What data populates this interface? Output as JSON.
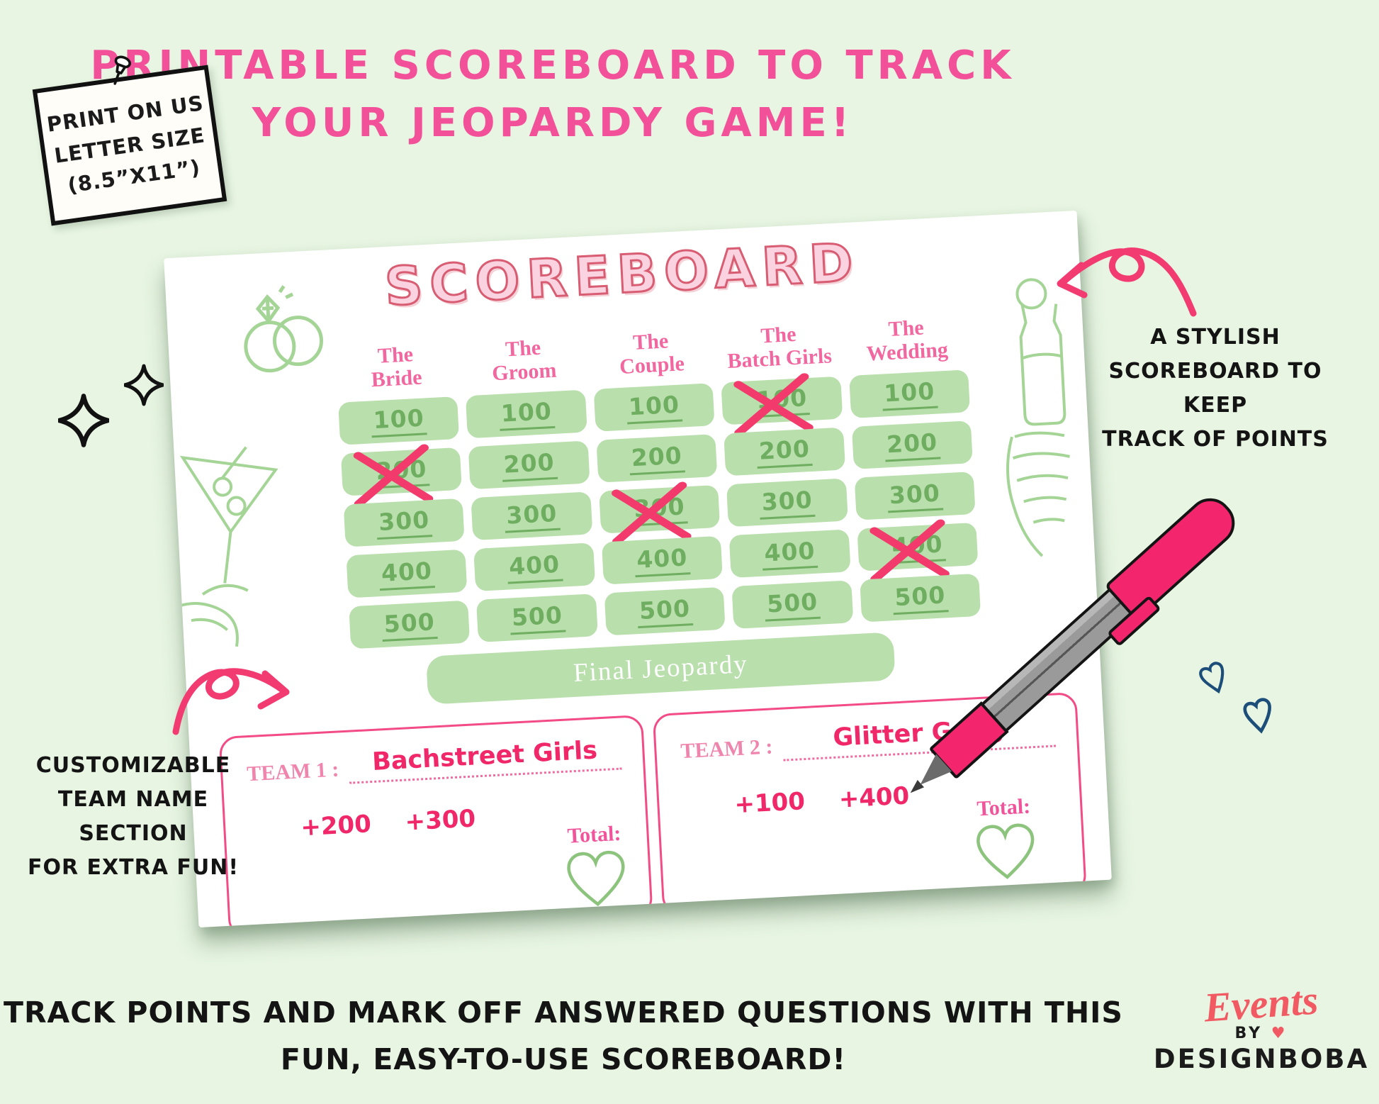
{
  "header": {
    "line1": "PRINTABLE SCOREBOARD TO TRACK",
    "line2": "YOUR JEOPARDY GAME!"
  },
  "note": {
    "lines": [
      "PRINT ON US",
      "LETTER SIZE",
      "(8.5”X11”)"
    ]
  },
  "annotations": {
    "right": {
      "lines": [
        "A STYLISH",
        "SCOREBOARD TO KEEP",
        "TRACK OF POINTS"
      ]
    },
    "left": {
      "lines": [
        "CUSTOMIZABLE",
        "TEAM NAME SECTION",
        "FOR EXTRA FUN!"
      ]
    }
  },
  "scoreboard": {
    "title": "SCOREBOARD",
    "columns": [
      {
        "label_top": "The",
        "label_bottom": "Bride",
        "cells": [
          {
            "value": "100",
            "crossed": false
          },
          {
            "value": "200",
            "crossed": true
          },
          {
            "value": "300",
            "crossed": false
          },
          {
            "value": "400",
            "crossed": false
          },
          {
            "value": "500",
            "crossed": false
          }
        ]
      },
      {
        "label_top": "The",
        "label_bottom": "Groom",
        "cells": [
          {
            "value": "100",
            "crossed": false
          },
          {
            "value": "200",
            "crossed": false
          },
          {
            "value": "300",
            "crossed": false
          },
          {
            "value": "400",
            "crossed": false
          },
          {
            "value": "500",
            "crossed": false
          }
        ]
      },
      {
        "label_top": "The",
        "label_bottom": "Couple",
        "cells": [
          {
            "value": "100",
            "crossed": false
          },
          {
            "value": "200",
            "crossed": false
          },
          {
            "value": "300",
            "crossed": true
          },
          {
            "value": "400",
            "crossed": false
          },
          {
            "value": "500",
            "crossed": false
          }
        ]
      },
      {
        "label_top": "The",
        "label_bottom": "Batch Girls",
        "cells": [
          {
            "value": "100",
            "crossed": true
          },
          {
            "value": "200",
            "crossed": false
          },
          {
            "value": "300",
            "crossed": false
          },
          {
            "value": "400",
            "crossed": false
          },
          {
            "value": "500",
            "crossed": false
          }
        ]
      },
      {
        "label_top": "The",
        "label_bottom": "Wedding",
        "cells": [
          {
            "value": "100",
            "crossed": false
          },
          {
            "value": "200",
            "crossed": false
          },
          {
            "value": "300",
            "crossed": false
          },
          {
            "value": "400",
            "crossed": true
          },
          {
            "value": "500",
            "crossed": false
          }
        ]
      }
    ],
    "final_jeopardy_label": "Final Jeopardy",
    "teams": [
      {
        "label": "TEAM 1 :",
        "name": "Bachstreet Girls",
        "scores": [
          "+200",
          "+300"
        ],
        "total_label": "Total:"
      },
      {
        "label": "TEAM 2 :",
        "name": "Glitter Gang",
        "scores": [
          "+100",
          "+400"
        ],
        "total_label": "Total:"
      }
    ]
  },
  "footer": {
    "line1": "TRACK POINTS AND MARK OFF ANSWERED QUESTIONS WITH THIS",
    "line2": "FUN, EASY-TO-USE SCOREBOARD!"
  },
  "logo": {
    "script": "Events",
    "by": "BY",
    "heart": "♥",
    "name": "DESIGNBOBA"
  },
  "colors": {
    "background": "#e7f5e2",
    "headline_pink": "#f2519a",
    "cross_pink": "#f23a6d",
    "pill_green": "#b9dfac",
    "pill_text_green": "#6fae61",
    "header_pink": "#f1679f",
    "team_border_pink": "#f34b86",
    "handwriting_pink": "#f02768",
    "heart_green": "#8cc47d",
    "art_green": "#a4d596",
    "navy": "#1d4e7a",
    "logo_coral": "#f15a62"
  }
}
